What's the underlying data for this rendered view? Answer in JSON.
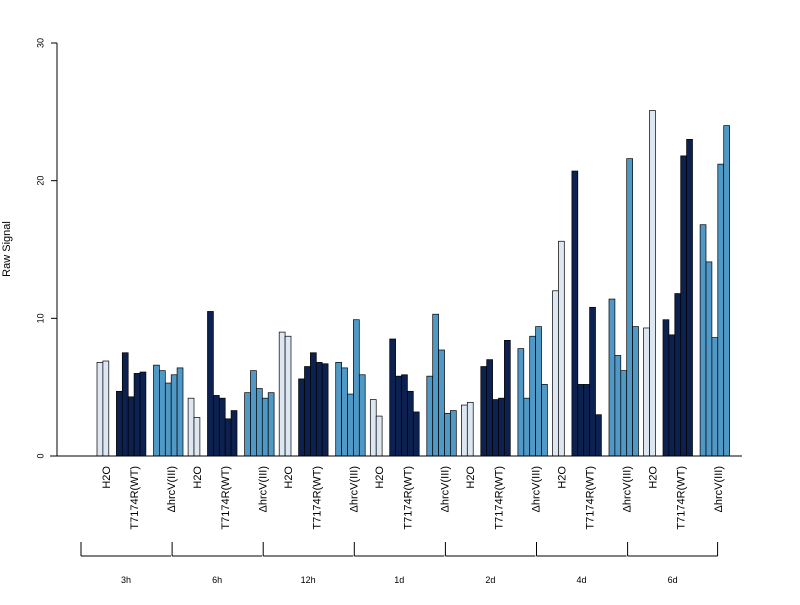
{
  "chart_data": {
    "type": "bar",
    "ylabel": "Raw Signal",
    "ylim": [
      0,
      30
    ],
    "y_ticks": [
      0,
      10,
      20,
      30
    ],
    "series_groups": [
      "H2O",
      "T7174R(WT)",
      "ΔhrcV(III)"
    ],
    "group_colors": {
      "H2O": "#dce7f2",
      "T7174R(WT)": "#0c2150",
      "ΔhrcV(III)": "#5098c6"
    },
    "timepoints": [
      {
        "label": "3h",
        "values": {
          "H2O": [
            6.8,
            6.9
          ],
          "T7174R(WT)": [
            4.7,
            7.5,
            4.3,
            6.0,
            6.1
          ],
          "ΔhrcV(III)": [
            6.6,
            6.2,
            5.3,
            5.9,
            6.4
          ]
        }
      },
      {
        "label": "6h",
        "values": {
          "H2O": [
            4.2,
            2.8
          ],
          "T7174R(WT)": [
            10.5,
            4.4,
            4.2,
            2.7,
            3.3
          ],
          "ΔhrcV(III)": [
            4.6,
            6.2,
            4.9,
            4.2,
            4.6
          ]
        }
      },
      {
        "label": "12h",
        "values": {
          "H2O": [
            9.0,
            8.7
          ],
          "T7174R(WT)": [
            5.6,
            6.5,
            7.5,
            6.8,
            6.7
          ],
          "ΔhrcV(III)": [
            6.8,
            6.4,
            4.5,
            9.9,
            5.9
          ]
        }
      },
      {
        "label": "1d",
        "values": {
          "H2O": [
            4.1,
            2.9
          ],
          "T7174R(WT)": [
            8.5,
            5.8,
            5.9,
            4.7,
            3.2
          ],
          "ΔhrcV(III)": [
            5.8,
            10.3,
            7.7,
            3.1,
            3.3
          ]
        }
      },
      {
        "label": "2d",
        "values": {
          "H2O": [
            3.7,
            3.9
          ],
          "T7174R(WT)": [
            6.5,
            7.0,
            4.1,
            4.2,
            8.4
          ],
          "ΔhrcV(III)": [
            7.8,
            4.2,
            8.7,
            9.4,
            5.2
          ]
        }
      },
      {
        "label": "4d",
        "values": {
          "H2O": [
            12.0,
            15.6
          ],
          "T7174R(WT)": [
            20.7,
            5.2,
            5.2,
            10.8,
            3.0
          ],
          "ΔhrcV(III)": [
            11.4,
            7.3,
            6.2,
            21.6,
            9.4
          ]
        }
      },
      {
        "label": "6d",
        "values": {
          "H2O": [
            9.3,
            25.1
          ],
          "T7174R(WT)": [
            9.9,
            8.8,
            11.8,
            21.8,
            23.0
          ],
          "ΔhrcV(III)": [
            16.8,
            14.1,
            8.6,
            21.2,
            24.0
          ]
        }
      }
    ]
  }
}
